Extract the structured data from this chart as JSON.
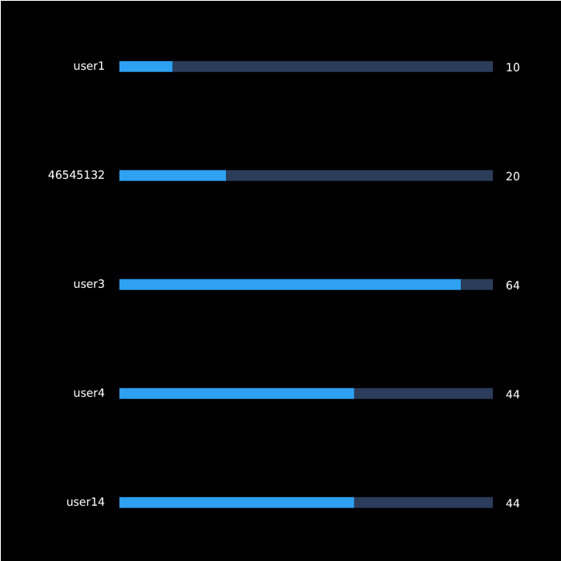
{
  "chart_data": {
    "type": "bar",
    "orientation": "horizontal",
    "stacked": true,
    "categories": [
      "user1",
      "46545132",
      "user3",
      "user4",
      "user14"
    ],
    "xlim": [
      0,
      70
    ],
    "tick_labels": "y",
    "grid": false,
    "series": [
      {
        "color": "#2ea1f2",
        "values": [
          10,
          20,
          64,
          44,
          44
        ],
        "value_labels": [
          "10",
          "20",
          "64",
          "44",
          "44"
        ]
      },
      {
        "color": "#2b3d5b",
        "values": [
          60,
          50,
          6,
          26,
          26
        ]
      }
    ]
  }
}
